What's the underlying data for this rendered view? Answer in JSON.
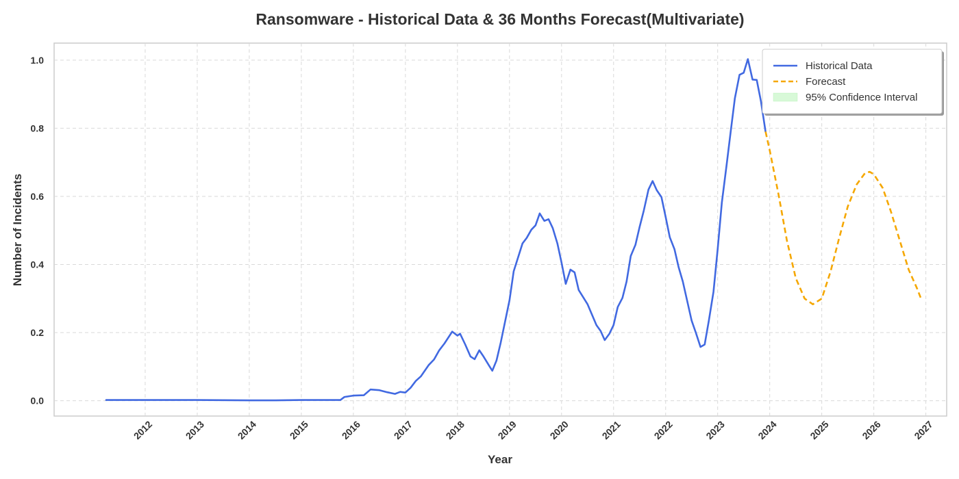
{
  "chart_data": {
    "type": "line",
    "title": "Ransomware - Historical Data & 36 Months Forecast(Multivariate)",
    "xlabel": "Year",
    "ylabel": "Number of Incidents",
    "xlim": [
      2010.25,
      2027.4
    ],
    "ylim": [
      -0.045,
      1.05
    ],
    "x_ticks": [
      "2012",
      "2013",
      "2014",
      "2015",
      "2016",
      "2017",
      "2018",
      "2019",
      "2020",
      "2021",
      "2022",
      "2023",
      "2024",
      "2025",
      "2026",
      "2027"
    ],
    "y_ticks": [
      "0.0",
      "0.2",
      "0.4",
      "0.6",
      "0.8",
      "1.0"
    ],
    "grid": true,
    "legend_position": "top-right",
    "colors": {
      "historical": "#4169e1",
      "forecast": "#f5a700",
      "confidence": "#90ee90",
      "grid": "#d9d9d9",
      "frame": "#cccccc"
    },
    "series": [
      {
        "name": "Historical Data",
        "style": "solid",
        "points": [
          [
            2011.25,
            0.002
          ],
          [
            2012.0,
            0.002
          ],
          [
            2013.0,
            0.002
          ],
          [
            2014.0,
            0.001
          ],
          [
            2014.5,
            0.001
          ],
          [
            2015.0,
            0.002
          ],
          [
            2015.75,
            0.002
          ],
          [
            2015.83,
            0.011
          ],
          [
            2016.0,
            0.015
          ],
          [
            2016.2,
            0.016
          ],
          [
            2016.33,
            0.033
          ],
          [
            2016.5,
            0.031
          ],
          [
            2016.65,
            0.025
          ],
          [
            2016.8,
            0.02
          ],
          [
            2016.9,
            0.026
          ],
          [
            2017.0,
            0.024
          ],
          [
            2017.1,
            0.038
          ],
          [
            2017.2,
            0.058
          ],
          [
            2017.3,
            0.072
          ],
          [
            2017.45,
            0.105
          ],
          [
            2017.55,
            0.121
          ],
          [
            2017.65,
            0.148
          ],
          [
            2017.75,
            0.168
          ],
          [
            2017.9,
            0.203
          ],
          [
            2018.0,
            0.191
          ],
          [
            2018.05,
            0.197
          ],
          [
            2018.15,
            0.165
          ],
          [
            2018.25,
            0.13
          ],
          [
            2018.33,
            0.122
          ],
          [
            2018.42,
            0.148
          ],
          [
            2018.5,
            0.13
          ],
          [
            2018.62,
            0.1
          ],
          [
            2018.67,
            0.088
          ],
          [
            2018.75,
            0.118
          ],
          [
            2018.83,
            0.17
          ],
          [
            2019.0,
            0.295
          ],
          [
            2019.08,
            0.38
          ],
          [
            2019.25,
            0.462
          ],
          [
            2019.33,
            0.478
          ],
          [
            2019.42,
            0.502
          ],
          [
            2019.5,
            0.515
          ],
          [
            2019.58,
            0.55
          ],
          [
            2019.67,
            0.528
          ],
          [
            2019.75,
            0.533
          ],
          [
            2019.83,
            0.507
          ],
          [
            2019.92,
            0.462
          ],
          [
            2020.0,
            0.405
          ],
          [
            2020.08,
            0.343
          ],
          [
            2020.17,
            0.385
          ],
          [
            2020.25,
            0.377
          ],
          [
            2020.33,
            0.325
          ],
          [
            2020.5,
            0.283
          ],
          [
            2020.67,
            0.222
          ],
          [
            2020.75,
            0.205
          ],
          [
            2020.83,
            0.178
          ],
          [
            2020.92,
            0.197
          ],
          [
            2021.0,
            0.222
          ],
          [
            2021.08,
            0.275
          ],
          [
            2021.17,
            0.302
          ],
          [
            2021.25,
            0.35
          ],
          [
            2021.33,
            0.425
          ],
          [
            2021.42,
            0.458
          ],
          [
            2021.5,
            0.51
          ],
          [
            2021.58,
            0.558
          ],
          [
            2021.67,
            0.62
          ],
          [
            2021.75,
            0.645
          ],
          [
            2021.83,
            0.618
          ],
          [
            2021.92,
            0.598
          ],
          [
            2022.0,
            0.54
          ],
          [
            2022.08,
            0.48
          ],
          [
            2022.17,
            0.445
          ],
          [
            2022.25,
            0.392
          ],
          [
            2022.33,
            0.35
          ],
          [
            2022.5,
            0.235
          ],
          [
            2022.58,
            0.2
          ],
          [
            2022.67,
            0.158
          ],
          [
            2022.75,
            0.165
          ],
          [
            2022.83,
            0.235
          ],
          [
            2022.92,
            0.32
          ],
          [
            2023.0,
            0.445
          ],
          [
            2023.08,
            0.582
          ],
          [
            2023.17,
            0.69
          ],
          [
            2023.25,
            0.79
          ],
          [
            2023.33,
            0.888
          ],
          [
            2023.42,
            0.957
          ],
          [
            2023.5,
            0.963
          ],
          [
            2023.58,
            1.003
          ],
          [
            2023.67,
            0.943
          ],
          [
            2023.75,
            0.942
          ],
          [
            2023.83,
            0.88
          ],
          [
            2023.92,
            0.79
          ]
        ]
      },
      {
        "name": "Forecast",
        "style": "dashed",
        "points": [
          [
            2023.92,
            0.79
          ],
          [
            2024.0,
            0.735
          ],
          [
            2024.17,
            0.605
          ],
          [
            2024.33,
            0.47
          ],
          [
            2024.5,
            0.36
          ],
          [
            2024.67,
            0.3
          ],
          [
            2024.83,
            0.283
          ],
          [
            2025.0,
            0.3
          ],
          [
            2025.17,
            0.38
          ],
          [
            2025.33,
            0.475
          ],
          [
            2025.5,
            0.57
          ],
          [
            2025.67,
            0.635
          ],
          [
            2025.83,
            0.668
          ],
          [
            2025.92,
            0.672
          ],
          [
            2026.0,
            0.665
          ],
          [
            2026.17,
            0.625
          ],
          [
            2026.33,
            0.555
          ],
          [
            2026.5,
            0.47
          ],
          [
            2026.67,
            0.385
          ],
          [
            2026.83,
            0.33
          ],
          [
            2026.92,
            0.295
          ]
        ]
      }
    ],
    "confidence_interval": {
      "name": "95% Confidence Interval",
      "lower": [],
      "upper": []
    }
  }
}
